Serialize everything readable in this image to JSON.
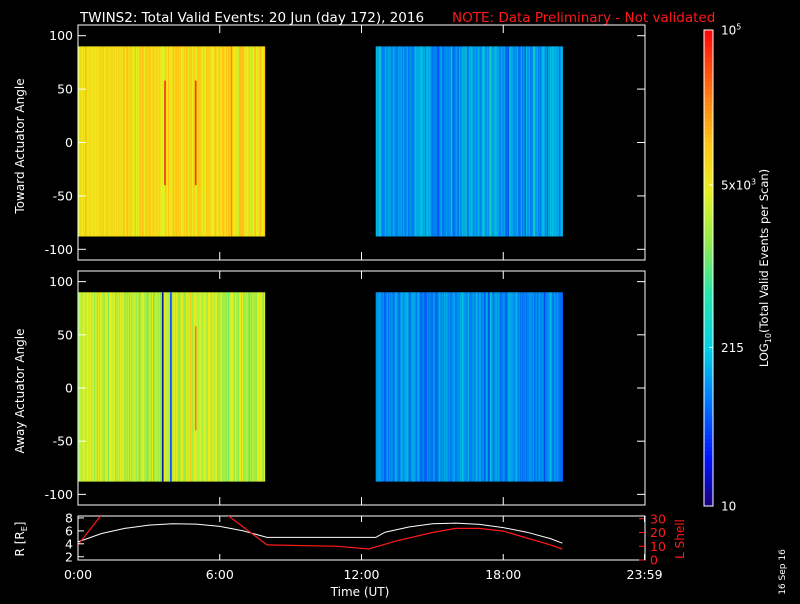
{
  "header": {
    "title": "TWINS2: Total Valid Events: 20 Jun (day 172), 2016",
    "note": "NOTE: Data Preliminary - Not validated"
  },
  "colors": {
    "background": "#000000",
    "text": "#ffffff",
    "note": "#ff1a1a",
    "r_line": "#ffffff",
    "lshell_line": "#ff1a1a"
  },
  "chart_data": [
    {
      "type": "heatmap",
      "panel": "top",
      "ylabel": "Toward Actuator Angle",
      "ylim": [
        -110,
        110
      ],
      "y_ticks": [
        "100",
        "50",
        "0",
        "-50",
        "-100"
      ],
      "y_tick_values": [
        100,
        50,
        0,
        -50,
        -100
      ],
      "angle_range": [
        -88,
        90
      ],
      "xlim": [
        0,
        24
      ],
      "x_tick_values": [
        0,
        6,
        12,
        18,
        24
      ],
      "grid": false,
      "data_blocks": [
        {
          "start_hr": 0.0,
          "end_hr": 7.9,
          "base_log": 3.85,
          "character": "green-yellow-orange, dense streaks"
        },
        {
          "start_hr": 12.6,
          "end_hr": 20.5,
          "base_log": 2.1,
          "character": "cyan-blue, dense streaks"
        }
      ],
      "features": [
        {
          "at_hr": 3.65,
          "note": "thin red spike"
        },
        {
          "at_hr": 4.95,
          "note": "red-orange spike"
        }
      ]
    },
    {
      "type": "heatmap",
      "panel": "middle",
      "ylabel": "Away Actuator Angle",
      "ylim": [
        -110,
        110
      ],
      "y_ticks": [
        "100",
        "50",
        "0",
        "-50",
        "-100"
      ],
      "y_tick_values": [
        100,
        50,
        0,
        -50,
        -100
      ],
      "angle_range": [
        -88,
        90
      ],
      "xlim": [
        0,
        24
      ],
      "x_tick_values": [
        0,
        6,
        12,
        18,
        24
      ],
      "grid": false,
      "data_blocks": [
        {
          "start_hr": 0.0,
          "end_hr": 7.9,
          "base_log": 3.45,
          "character": "green-cyan-yellow, dense streaks"
        },
        {
          "start_hr": 12.6,
          "end_hr": 20.5,
          "base_log": 2.0,
          "character": "cyan-blue, dense streaks"
        }
      ],
      "features": [
        {
          "at_hr": 3.55,
          "note": "dark blue stripe"
        },
        {
          "at_hr": 3.9,
          "note": "blue stripe"
        },
        {
          "at_hr": 4.95,
          "note": "orange spike"
        }
      ]
    },
    {
      "type": "line",
      "panel": "bottom",
      "xlabel": "Time (UT)",
      "x_ticks": [
        "0:00",
        "6:00",
        "12:00",
        "18:00",
        "23:59"
      ],
      "x_tick_values": [
        0,
        6,
        12,
        18,
        23.98
      ],
      "xlim": [
        0,
        24
      ],
      "left_axis": {
        "label": "R [R",
        "label_sub": "E",
        "label_close": "]",
        "ticks": [
          "8",
          "6",
          "4",
          "2"
        ],
        "tick_values": [
          8,
          6,
          4,
          2
        ],
        "ylim": [
          1.5,
          8.3
        ]
      },
      "right_axis": {
        "label": "L Shell",
        "ticks": [
          "30",
          "20",
          "10",
          "0"
        ],
        "tick_values": [
          30,
          20,
          10,
          0
        ],
        "ylim": [
          0,
          32
        ],
        "color": "#ff1a1a"
      },
      "series": [
        {
          "axis": "left",
          "x": [
            0,
            1,
            2,
            3,
            4,
            5,
            6,
            7,
            8,
            9,
            10,
            11,
            12,
            12.6,
            13,
            14,
            15,
            16,
            17,
            18,
            19,
            20,
            20.5
          ],
          "values": [
            4.3,
            5.6,
            6.4,
            6.9,
            7.1,
            7.05,
            6.7,
            6.0,
            5.0,
            5.0,
            5.0,
            5.0,
            5.0,
            5.0,
            5.8,
            6.6,
            7.1,
            7.2,
            7.0,
            6.5,
            5.8,
            4.8,
            4.1
          ]
        },
        {
          "axis": "right",
          "segments": [
            {
              "x": [
                0,
                1.0
              ],
              "values": [
                11,
                33
              ]
            },
            {
              "x": [
                6.3,
                8.0
              ],
              "values": [
                33,
                11
              ]
            },
            {
              "x": [
                8.0,
                11.0,
                12.3,
                13.5,
                15,
                16,
                17,
                18,
                19,
                20,
                20.5
              ],
              "values": [
                11,
                10,
                8,
                14,
                20,
                23,
                23,
                21,
                16,
                11,
                8
              ]
            }
          ]
        }
      ]
    }
  ],
  "colorbar": {
    "label_main": "LOG",
    "label_sub": "10",
    "label_rest": "(Total Valid Events per Scan)",
    "log_range": [
      1,
      5
    ],
    "tick_labels": [
      "10",
      "215",
      "5x10",
      "10"
    ],
    "tick_sup": [
      "",
      "",
      "3",
      "5"
    ],
    "tick_log_values": [
      1,
      2.3324,
      3.699,
      5
    ]
  },
  "footer": {
    "stamp": "16 Sep 16"
  }
}
